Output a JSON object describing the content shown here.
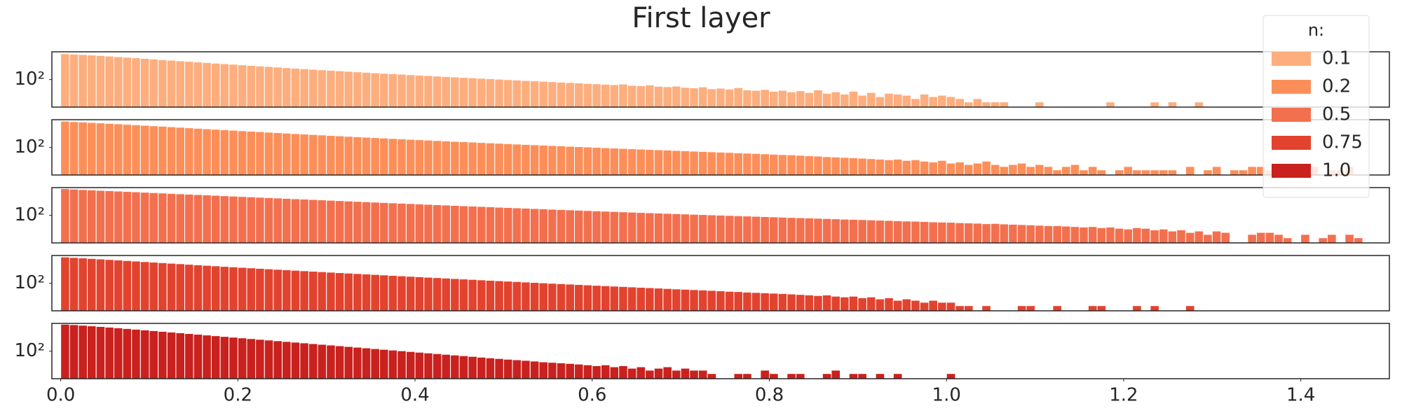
{
  "chart_data": {
    "type": "histogram",
    "title": "First layer",
    "legend_title": "n:",
    "log_scale": true,
    "legend_position": "upper right",
    "bins": [
      0,
      0.01,
      0.02,
      0.03,
      0.04,
      0.05,
      0.06,
      0.07,
      0.08,
      0.09,
      0.1,
      0.11,
      0.12,
      0.13,
      0.14,
      0.15,
      0.16,
      0.17,
      0.18,
      0.19,
      0.2,
      0.21,
      0.22,
      0.23,
      0.24,
      0.25,
      0.26,
      0.27,
      0.28,
      0.29,
      0.3,
      0.31,
      0.32,
      0.33,
      0.34,
      0.35,
      0.36,
      0.37,
      0.38,
      0.39,
      0.4,
      0.41,
      0.42,
      0.43,
      0.44,
      0.45,
      0.46,
      0.47,
      0.48,
      0.49,
      0.5,
      0.51,
      0.52,
      0.53,
      0.54,
      0.55,
      0.56,
      0.57,
      0.58,
      0.59,
      0.6,
      0.61,
      0.62,
      0.63,
      0.64,
      0.65,
      0.66,
      0.67,
      0.68,
      0.69,
      0.7,
      0.71,
      0.72,
      0.73,
      0.74,
      0.75,
      0.76,
      0.77,
      0.78,
      0.79,
      0.8,
      0.81,
      0.82,
      0.83,
      0.84,
      0.85,
      0.86,
      0.87,
      0.88,
      0.89,
      0.9,
      0.91,
      0.92,
      0.93,
      0.94,
      0.95,
      0.96,
      0.97,
      0.98,
      0.99,
      1,
      1.01,
      1.02,
      1.03,
      1.04,
      1.05,
      1.06,
      1.07,
      1.08,
      1.09,
      1.1,
      1.11,
      1.12,
      1.13,
      1.14,
      1.15,
      1.16,
      1.17,
      1.18,
      1.19,
      1.2,
      1.21,
      1.22,
      1.23,
      1.24,
      1.25,
      1.26,
      1.27,
      1.28,
      1.29,
      1.3,
      1.31,
      1.32,
      1.33,
      1.34,
      1.35,
      1.36,
      1.37,
      1.38,
      1.39,
      1.4,
      1.41,
      1.42,
      1.43,
      1.44,
      1.45,
      1.46,
      1.47
    ],
    "series": [
      {
        "name": "0.1",
        "color": "#fdae7e",
        "values": [
          20000,
          18500,
          17000,
          15500,
          14000,
          12500,
          11000,
          9800,
          8700,
          7700,
          6800,
          6000,
          5300,
          4700,
          4200,
          3700,
          3300,
          2900,
          2600,
          2300,
          2050,
          1800,
          1600,
          1450,
          1300,
          1150,
          1030,
          920,
          820,
          740,
          670,
          600,
          540,
          490,
          440,
          400,
          360,
          330,
          300,
          270,
          245,
          225,
          205,
          185,
          170,
          155,
          142,
          130,
          118,
          108,
          98,
          90,
          82,
          76,
          70,
          64,
          58,
          54,
          50,
          45,
          42,
          38,
          35,
          40,
          30,
          28,
          33,
          25,
          23,
          26,
          20,
          18,
          22,
          15,
          17,
          14,
          19,
          12,
          11,
          13,
          9,
          11,
          8,
          10,
          7,
          12,
          6,
          8,
          5,
          9,
          4,
          7,
          3,
          6,
          5,
          4,
          2,
          5,
          3,
          4,
          3,
          2,
          1,
          2,
          1,
          1,
          1,
          0,
          0,
          0,
          1,
          0,
          0,
          0,
          0,
          0,
          0,
          0,
          1,
          0,
          0,
          0,
          0,
          1,
          0,
          1,
          0,
          0,
          1,
          0,
          0,
          0,
          0,
          0,
          0,
          0,
          0,
          0,
          0,
          0,
          0,
          0,
          0,
          0,
          0,
          0,
          0
        ]
      },
      {
        "name": "0.2",
        "color": "#fc8f59",
        "values": [
          22000,
          20000,
          18500,
          17000,
          15500,
          14000,
          12800,
          11600,
          10500,
          9500,
          8600,
          7800,
          7000,
          6300,
          5700,
          5100,
          4600,
          4200,
          3800,
          3450,
          3100,
          2800,
          2550,
          2300,
          2100,
          1900,
          1720,
          1560,
          1420,
          1300,
          1180,
          1080,
          980,
          900,
          820,
          750,
          690,
          630,
          580,
          530,
          490,
          450,
          415,
          380,
          350,
          325,
          300,
          275,
          255,
          235,
          218,
          200,
          185,
          172,
          160,
          148,
          137,
          127,
          118,
          110,
          102,
          95,
          88,
          82,
          76,
          71,
          66,
          62,
          58,
          54,
          50,
          47,
          44,
          41,
          38,
          36,
          33,
          31,
          29,
          27,
          25,
          23,
          22,
          20,
          18,
          17,
          15,
          14,
          13,
          12,
          11,
          10,
          9,
          8,
          9,
          7,
          8,
          6,
          5,
          7,
          4,
          5,
          3,
          4,
          6,
          3,
          2,
          3,
          4,
          2,
          3,
          2,
          1,
          2,
          3,
          1,
          2,
          1,
          0,
          1,
          2,
          1,
          1,
          1,
          1,
          1,
          0,
          2,
          0,
          1,
          2,
          0,
          1,
          1,
          2,
          2,
          1,
          0,
          1,
          0,
          1,
          2,
          0,
          1,
          1,
          2,
          0
        ]
      },
      {
        "name": "0.5",
        "color": "#f3704f",
        "values": [
          24000,
          22000,
          20000,
          18500,
          17000,
          15800,
          14600,
          13500,
          12500,
          11500,
          10600,
          9800,
          9000,
          8300,
          7700,
          7100,
          6600,
          6100,
          5600,
          5200,
          4800,
          4450,
          4100,
          3800,
          3520,
          3260,
          3020,
          2800,
          2600,
          2400,
          2220,
          2060,
          1900,
          1760,
          1630,
          1510,
          1400,
          1300,
          1200,
          1120,
          1040,
          960,
          890,
          830,
          770,
          715,
          665,
          620,
          575,
          535,
          500,
          465,
          435,
          405,
          378,
          352,
          330,
          308,
          288,
          270,
          252,
          236,
          220,
          206,
          193,
          181,
          170,
          160,
          150,
          141,
          132,
          124,
          117,
          110,
          104,
          98,
          92,
          87,
          82,
          77,
          73,
          69,
          65,
          61,
          58,
          55,
          52,
          49,
          46,
          44,
          42,
          39,
          37,
          35,
          33,
          31,
          30,
          28,
          26,
          25,
          24,
          22,
          21,
          20,
          18,
          19,
          17,
          16,
          15,
          14,
          13,
          12,
          12,
          11,
          10,
          9,
          10,
          8,
          9,
          7,
          6,
          8,
          7,
          5,
          6,
          4,
          5,
          3,
          4,
          2,
          4,
          3,
          0,
          0,
          2,
          3,
          3,
          2,
          1,
          0,
          2,
          0,
          1,
          2,
          0,
          2,
          1
        ]
      },
      {
        "name": "0.75",
        "color": "#e2432f",
        "values": [
          22000,
          20000,
          18000,
          16200,
          14600,
          13100,
          11800,
          10600,
          9500,
          8500,
          7600,
          6800,
          6100,
          5500,
          4900,
          4400,
          3950,
          3550,
          3200,
          2880,
          2600,
          2350,
          2120,
          1920,
          1740,
          1580,
          1430,
          1300,
          1180,
          1070,
          970,
          880,
          800,
          730,
          665,
          605,
          550,
          500,
          455,
          415,
          380,
          345,
          315,
          288,
          263,
          240,
          220,
          200,
          183,
          168,
          154,
          141,
          129,
          118,
          108,
          99,
          91,
          84,
          77,
          71,
          65,
          60,
          55,
          51,
          47,
          43,
          40,
          37,
          34,
          31,
          29,
          27,
          25,
          23,
          21,
          19,
          18,
          16,
          15,
          14,
          13,
          12,
          11,
          10,
          9,
          8,
          9,
          7,
          6,
          7,
          5,
          6,
          4,
          5,
          3,
          4,
          3,
          2,
          3,
          2,
          2,
          1,
          1,
          0,
          1,
          0,
          0,
          0,
          1,
          1,
          0,
          0,
          1,
          0,
          0,
          0,
          1,
          1,
          0,
          0,
          0,
          1,
          0,
          1,
          0,
          0,
          0,
          1,
          0,
          0,
          0,
          0,
          0,
          0,
          0,
          0,
          0,
          0,
          0,
          0,
          0,
          0,
          0,
          0,
          0,
          0,
          0
        ]
      },
      {
        "name": "1.0",
        "color": "#c9211e",
        "values": [
          25000,
          23000,
          20500,
          18000,
          15800,
          13800,
          12000,
          10400,
          9000,
          7800,
          6700,
          5800,
          5000,
          4300,
          3700,
          3200,
          2750,
          2370,
          2040,
          1760,
          1520,
          1310,
          1130,
          980,
          845,
          730,
          630,
          545,
          470,
          405,
          350,
          302,
          261,
          225,
          195,
          168,
          145,
          125,
          108,
          93,
          80,
          69,
          60,
          52,
          45,
          39,
          34,
          29,
          25,
          22,
          19,
          17,
          15,
          13,
          11,
          10,
          9,
          8,
          7,
          6,
          5,
          6,
          4,
          5,
          3,
          4,
          2,
          3,
          4,
          2,
          3,
          2,
          2,
          1,
          0,
          0,
          1,
          1,
          0,
          2,
          1,
          0,
          1,
          1,
          0,
          0,
          1,
          2,
          0,
          1,
          1,
          0,
          1,
          0,
          1,
          0,
          0,
          0,
          0,
          0,
          1,
          0,
          0,
          0,
          0,
          0,
          0,
          0,
          0,
          0,
          0,
          0,
          0,
          0,
          0,
          0,
          0,
          0,
          0,
          0,
          0,
          0,
          0,
          0,
          0,
          0,
          0,
          0,
          0,
          0,
          0,
          0,
          0,
          0,
          0,
          0,
          0,
          0,
          0,
          0,
          0,
          0,
          0,
          0,
          0,
          0,
          0
        ]
      }
    ],
    "xlim": [
      -0.01,
      1.5
    ],
    "xticks": [
      {
        "value": 0,
        "label": "0.0"
      },
      0.2,
      0.4,
      0.6,
      0.8,
      {
        "value": 1,
        "label": "1.0"
      },
      1.2,
      1.4
    ],
    "ylim": [
      0.35,
      30000
    ],
    "yticks": [
      {
        "value": 100,
        "label": "10²"
      }
    ]
  }
}
